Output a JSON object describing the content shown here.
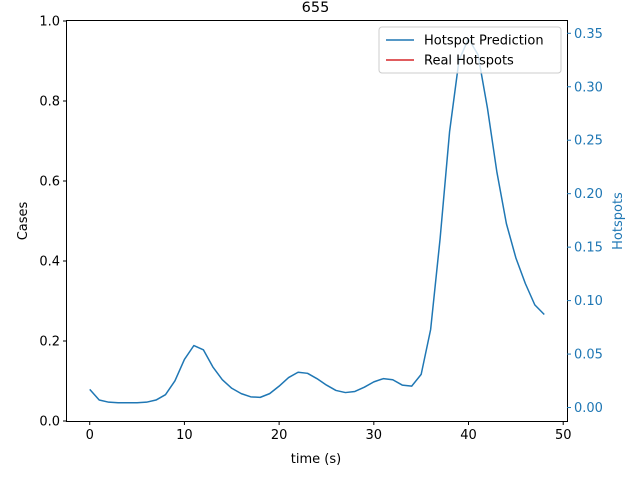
{
  "chart_data": {
    "type": "line",
    "title": "655",
    "xlabel": "time (s)",
    "ylabel_left": "Cases",
    "ylabel_right": "Hotspots",
    "xlim": [
      -2.4,
      50.4
    ],
    "ylim_left": [
      0,
      1.0
    ],
    "ylim_right": [
      -0.0126,
      0.3615
    ],
    "x_ticks": [
      0,
      10,
      20,
      30,
      40,
      50
    ],
    "x_tick_labels": [
      "0",
      "10",
      "20",
      "30",
      "40",
      "50"
    ],
    "y_left_ticks": [
      0,
      0.2,
      0.4,
      0.6,
      0.8,
      1.0
    ],
    "y_left_tick_labels": [
      "0.0",
      "0.2",
      "0.4",
      "0.6",
      "0.8",
      "1.0"
    ],
    "y_right_ticks": [
      0,
      0.05,
      0.1,
      0.15,
      0.2,
      0.25,
      0.3,
      0.35
    ],
    "y_right_tick_labels": [
      "0.00",
      "0.05",
      "0.10",
      "0.15",
      "0.20",
      "0.25",
      "0.30",
      "0.35"
    ],
    "legend_position": "top-right",
    "grid": false,
    "series": [
      {
        "name": "Hotspot Prediction",
        "axis": "right",
        "color": "#1f77b4",
        "x": [
          0,
          1,
          2,
          3,
          4,
          5,
          6,
          7,
          8,
          9,
          10,
          11,
          12,
          13,
          14,
          15,
          16,
          17,
          18,
          19,
          20,
          21,
          22,
          23,
          24,
          25,
          26,
          27,
          28,
          29,
          30,
          31,
          32,
          33,
          34,
          35,
          36,
          37,
          38,
          39,
          40,
          41,
          42,
          43,
          44,
          45,
          46,
          47,
          48
        ],
        "values": [
          0.017,
          0.007,
          0.005,
          0.0045,
          0.0045,
          0.0045,
          0.005,
          0.007,
          0.012,
          0.025,
          0.045,
          0.058,
          0.054,
          0.038,
          0.026,
          0.018,
          0.013,
          0.01,
          0.0095,
          0.013,
          0.02,
          0.028,
          0.033,
          0.032,
          0.027,
          0.021,
          0.016,
          0.014,
          0.015,
          0.019,
          0.024,
          0.027,
          0.026,
          0.021,
          0.02,
          0.031,
          0.073,
          0.158,
          0.258,
          0.325,
          0.345,
          0.33,
          0.28,
          0.22,
          0.172,
          0.14,
          0.116,
          0.096,
          0.087
        ]
      },
      {
        "name": "Real Hotspots",
        "axis": "left",
        "color": "#d62728",
        "x": [],
        "values": []
      }
    ]
  }
}
